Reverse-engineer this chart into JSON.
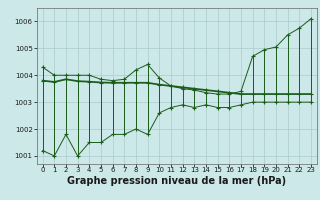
{
  "title": "Graphe pression niveau de la mer (hPa)",
  "background_color": "#cce8e8",
  "grid_color": "#aacccc",
  "line_color": "#1a5c1a",
  "hours": [
    0,
    1,
    2,
    3,
    4,
    5,
    6,
    7,
    8,
    9,
    10,
    11,
    12,
    13,
    14,
    15,
    16,
    17,
    18,
    19,
    20,
    21,
    22,
    23
  ],
  "max_values": [
    1004.3,
    1004.0,
    1004.0,
    1004.0,
    1004.0,
    1003.85,
    1003.8,
    1003.85,
    1004.2,
    1004.4,
    1003.9,
    1003.6,
    1003.5,
    1003.45,
    1003.35,
    1003.3,
    1003.3,
    1003.4,
    1004.7,
    1004.95,
    1005.05,
    1005.5,
    1005.75,
    1006.1
  ],
  "min_values": [
    1001.2,
    1001.0,
    1001.8,
    1001.0,
    1001.5,
    1001.5,
    1001.8,
    1001.8,
    1002.0,
    1001.8,
    1002.6,
    1002.8,
    1002.9,
    1002.8,
    1002.9,
    1002.8,
    1002.8,
    1002.9,
    1003.0,
    1003.0,
    1003.0,
    1003.0,
    1003.0,
    1003.0
  ],
  "mean_values": [
    1003.8,
    1003.75,
    1003.85,
    1003.78,
    1003.76,
    1003.73,
    1003.72,
    1003.72,
    1003.72,
    1003.72,
    1003.65,
    1003.6,
    1003.55,
    1003.5,
    1003.45,
    1003.4,
    1003.35,
    1003.3,
    1003.3,
    1003.3,
    1003.3,
    1003.3,
    1003.3,
    1003.3
  ],
  "ylim": [
    1000.7,
    1006.5
  ],
  "yticks": [
    1001,
    1002,
    1003,
    1004,
    1005,
    1006
  ],
  "ytick_labels": [
    "1001",
    "1002",
    "1003",
    "1004",
    "1005",
    "1006"
  ],
  "marker": "+",
  "markersize": 3.5,
  "linewidth": 0.7,
  "title_fontsize": 7,
  "tick_fontsize": 5
}
